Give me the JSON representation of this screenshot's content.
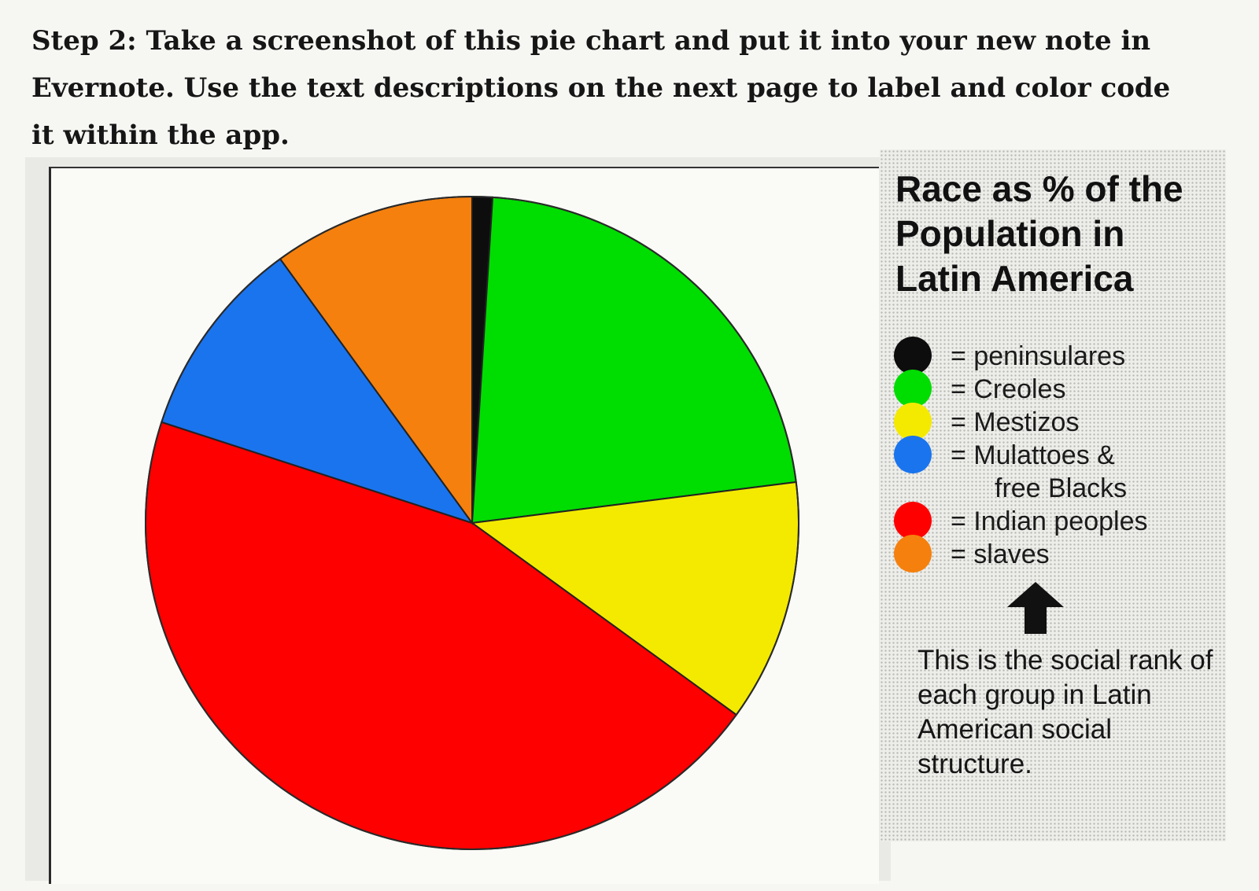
{
  "instructions": "Step 2: Take a screenshot of this pie chart and put it into your new note in Evernote. Use the text descriptions on the next page to label and color code it within the app.",
  "chart_data": {
    "type": "pie",
    "title": "Race as % of the Population in Latin America",
    "categories": [
      "peninsulares",
      "Creoles",
      "Mestizos",
      "Mulattoes & free Blacks",
      "Indian peoples",
      "slaves"
    ],
    "values": [
      1,
      22,
      12,
      10,
      45,
      10
    ],
    "unit": "%",
    "colors": [
      "#0d0d0d",
      "#00dd00",
      "#f4ea00",
      "#1a74ee",
      "#ff0000",
      "#f5800e"
    ],
    "legend": [
      {
        "label_a": "= peninsulares",
        "label_b": "",
        "color": "#0d0d0d"
      },
      {
        "label_a": "= Creoles",
        "label_b": "",
        "color": "#00dd00"
      },
      {
        "label_a": "= Mestizos",
        "label_b": "",
        "color": "#f4ea00"
      },
      {
        "label_a": "= Mulattoes &",
        "label_b": "free Blacks",
        "color": "#1a74ee"
      },
      {
        "label_a": "= Indian peoples",
        "label_b": "",
        "color": "#ff0000"
      },
      {
        "label_a": "= slaves",
        "label_b": "",
        "color": "#f5800e"
      }
    ],
    "legend_placement": "right",
    "grid": false
  },
  "note": {
    "arrow_icon": "up-arrow-icon",
    "text": "This is the social rank of each group in Latin American social structure."
  }
}
